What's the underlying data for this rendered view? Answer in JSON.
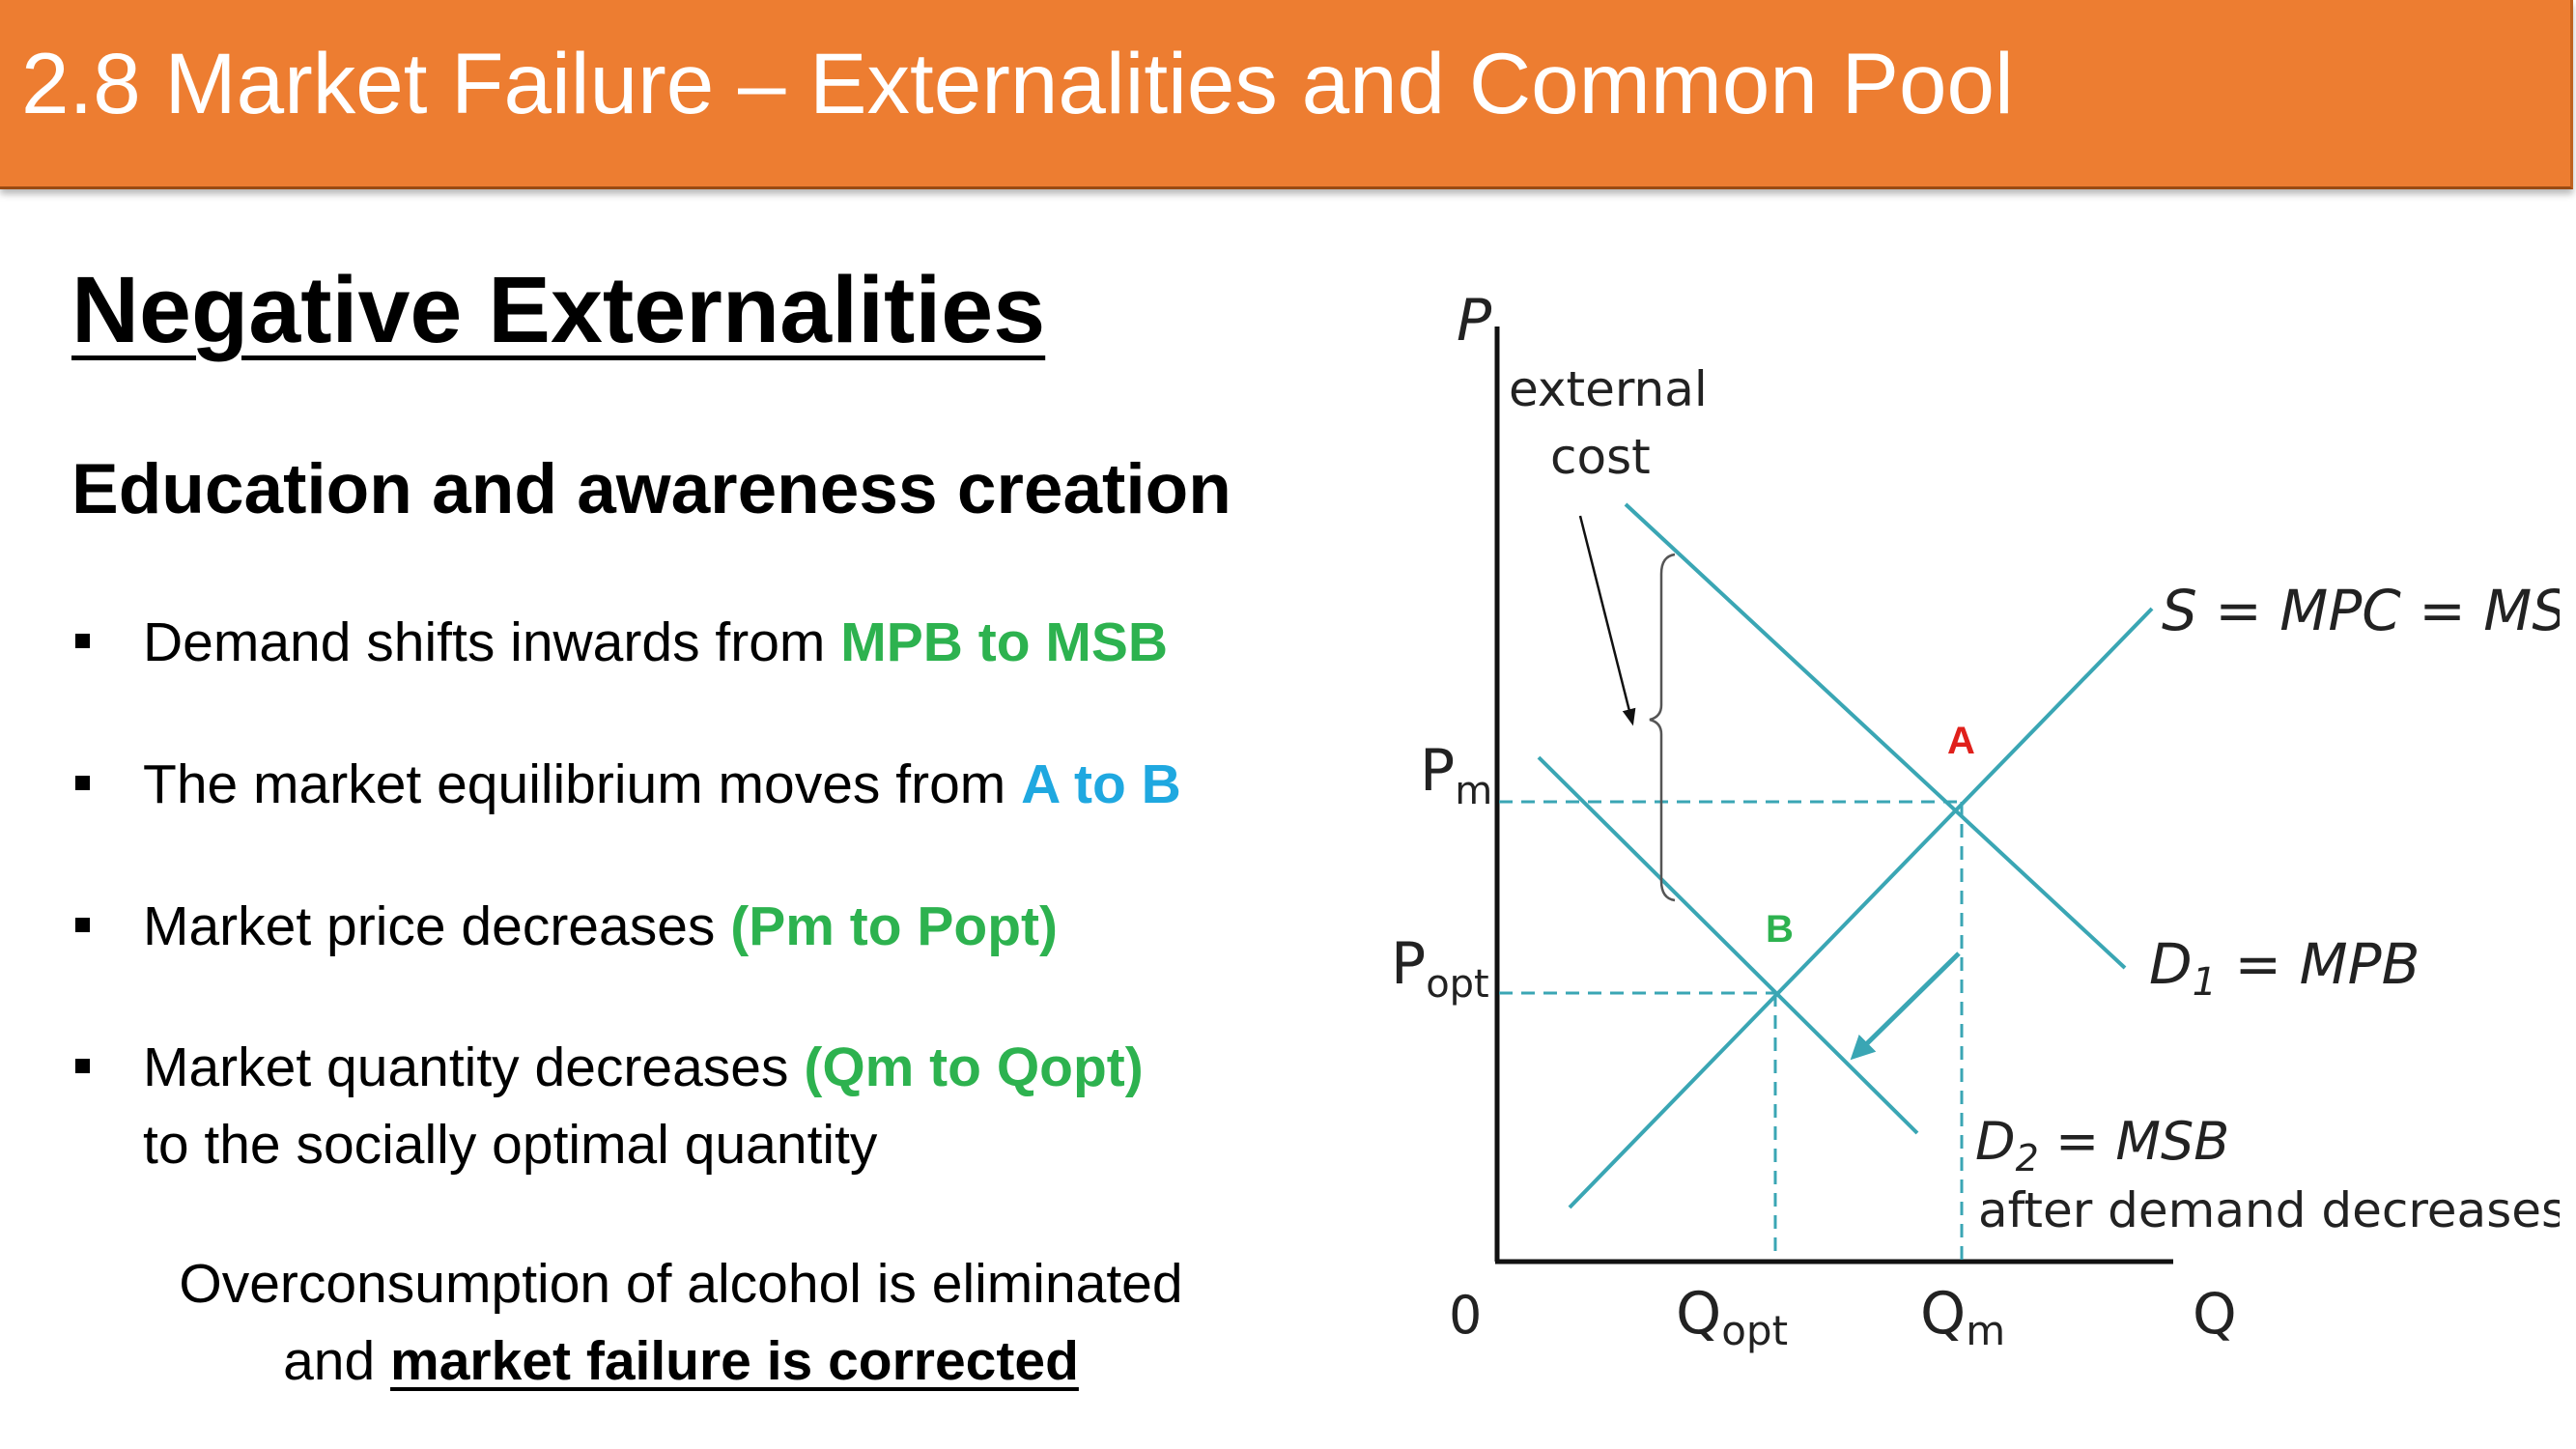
{
  "header": {
    "title": "2.8 Market Failure – Externalities and Common Pool"
  },
  "main": {
    "heading": "Negative Externalities",
    "subheading": "Education and awareness creation",
    "bullets": [
      {
        "text": "Demand shifts inwards from ",
        "highlight": "MPB to MSB",
        "highlight_color": "#2DB24F"
      },
      {
        "text": "The market equilibrium moves from ",
        "highlight": "A to B",
        "highlight_color": "#1FA8E0"
      },
      {
        "text": "Market price decreases ",
        "highlight": "(Pm to Popt)",
        "highlight_color": "#2DB24F"
      },
      {
        "text": "Market quantity decreases ",
        "highlight": "(Qm to Qopt)",
        "highlight_color": "#2DB24F",
        "line2": "to the socially optimal quantity"
      }
    ],
    "conclusion": {
      "line1": "Overconsumption of alcohol is eliminated",
      "line2_prefix": "and ",
      "line2_emphasis": "market failure is corrected"
    }
  },
  "diagram": {
    "axis_y": "P",
    "axis_x": "Q",
    "origin": "0",
    "price_labels": {
      "pm_base": "P",
      "pm_sub": "m",
      "popt_base": "P",
      "popt_sub": "opt"
    },
    "quantity_labels": {
      "qopt_base": "Q",
      "qopt_sub": "opt",
      "qm_base": "Q",
      "qm_sub": "m"
    },
    "supply_label": "S = MPC = MSC",
    "d1_label": {
      "base": "D",
      "sub": "1",
      "rest": " = MPB"
    },
    "d2_label": {
      "base": "D",
      "sub": "2",
      "rest": " = MSB",
      "line2": "after demand decreases"
    },
    "external_cost_label": [
      "external",
      "cost"
    ],
    "point_a": "A",
    "point_b": "B",
    "point_a_color": "#E0201B",
    "point_b_color": "#2DB24F",
    "line_color": "#3AA6B4"
  }
}
